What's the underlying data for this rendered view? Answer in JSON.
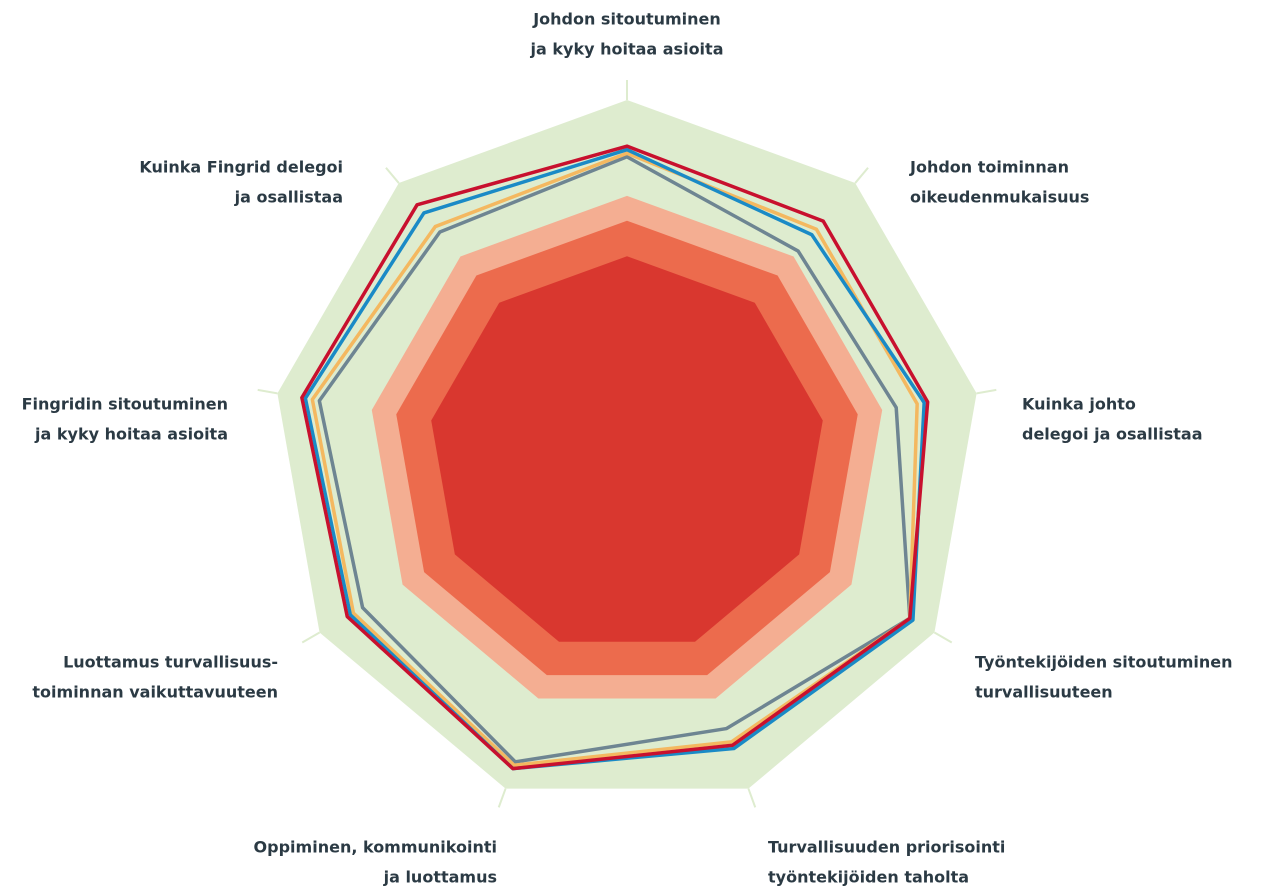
{
  "chart_data": {
    "type": "radar",
    "categories": [
      [
        "Johdon sitoutuminen",
        "ja kyky hoitaa asioita"
      ],
      [
        "Johdon toiminnan",
        "oikeudenmukaisuus"
      ],
      [
        "Kuinka johto",
        "delegoi ja osallistaa"
      ],
      [
        "Työntekijöiden sitoutuminen",
        "turvallisuuteen"
      ],
      [
        "Turvallisuuden priorisointi",
        "työntekijöiden taholta"
      ],
      [
        "Oppiminen, kommunikointi",
        "ja luottamus"
      ],
      [
        "Luottamus turvallisuus-",
        "toiminnan vaikuttavuuteen"
      ],
      [
        "Fingridin sitoutuminen",
        "ja kyky hoitaa asioita"
      ],
      [
        "Kuinka Fingrid delegoi",
        "ja osallistaa"
      ]
    ],
    "rlim": [
      0,
      100
    ],
    "bands": [
      {
        "value": 100,
        "color": "#deeccf"
      },
      {
        "value": 73,
        "color": "#f4ae92"
      },
      {
        "value": 66,
        "color": "#ec6b4d"
      },
      {
        "value": 56,
        "color": "#d9372f"
      }
    ],
    "series": [
      {
        "color": "#6e8592",
        "values": [
          84,
          75,
          77,
          92,
          82,
          92,
          86,
          88,
          82
        ]
      },
      {
        "color": "#f4b860",
        "values": [
          85,
          83,
          83,
          92,
          86,
          93,
          89,
          90,
          84
        ]
      },
      {
        "color": "#1a8ac6",
        "values": [
          86,
          81,
          85,
          93,
          88,
          94,
          90,
          92,
          89
        ]
      },
      {
        "color": "#c8102e",
        "values": [
          87,
          86,
          86,
          92,
          87,
          94,
          91,
          93,
          92
        ]
      }
    ]
  }
}
